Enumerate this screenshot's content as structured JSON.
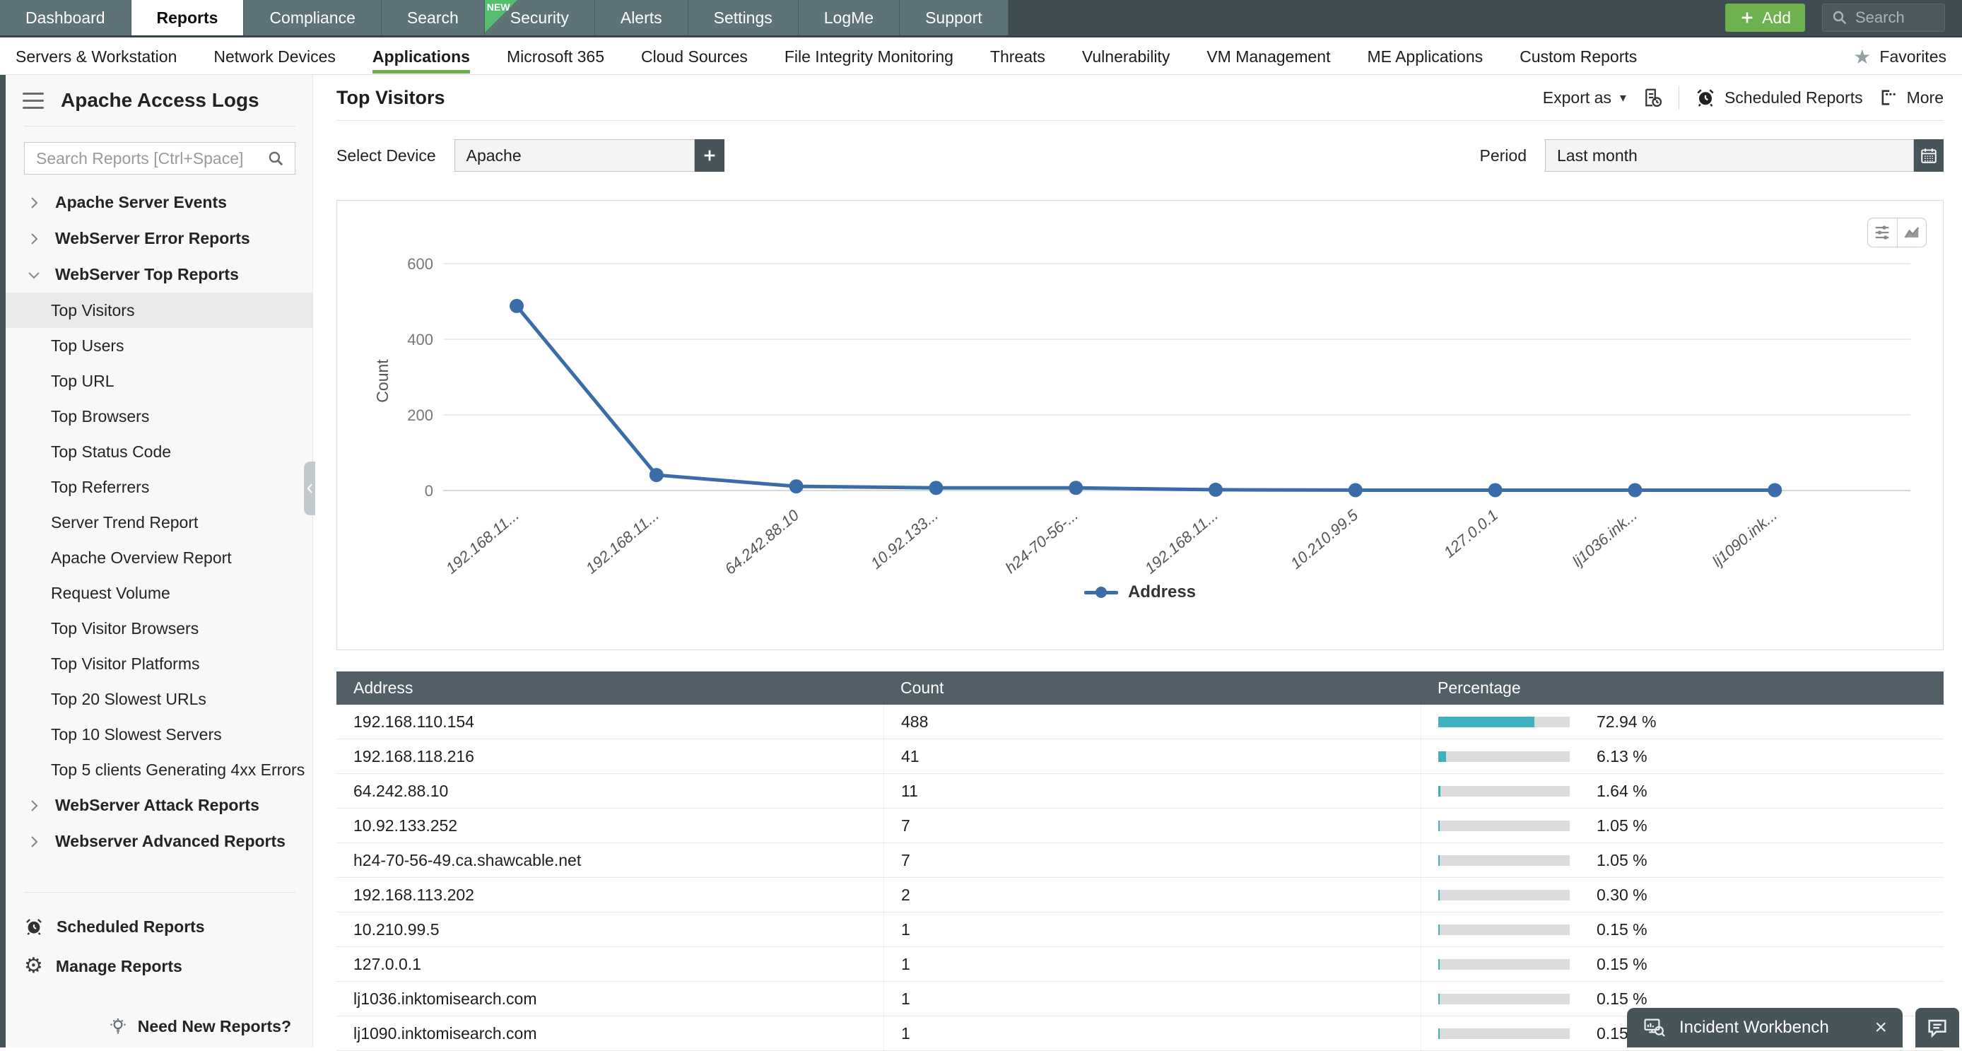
{
  "topnav": {
    "tabs": [
      {
        "label": "Dashboard",
        "active": false,
        "badge": null
      },
      {
        "label": "Reports",
        "active": true,
        "badge": null
      },
      {
        "label": "Compliance",
        "active": false,
        "badge": null
      },
      {
        "label": "Search",
        "active": false,
        "badge": null
      },
      {
        "label": "Security",
        "active": false,
        "badge": "NEW"
      },
      {
        "label": "Alerts",
        "active": false,
        "badge": null
      },
      {
        "label": "Settings",
        "active": false,
        "badge": null
      },
      {
        "label": "LogMe",
        "active": false,
        "badge": null
      },
      {
        "label": "Support",
        "active": false,
        "badge": null
      }
    ],
    "add_label": "Add",
    "search_placeholder": "Search"
  },
  "subnav": {
    "items": [
      "Servers & Workstation",
      "Network Devices",
      "Applications",
      "Microsoft 365",
      "Cloud Sources",
      "File Integrity Monitoring",
      "Threats",
      "Vulnerability",
      "VM Management",
      "ME Applications",
      "Custom Reports"
    ],
    "active_item": "Applications",
    "favorites_label": "Favorites"
  },
  "sidebar": {
    "title": "Apache Access Logs",
    "search_placeholder": "Search Reports [Ctrl+Space]",
    "groups": [
      {
        "label": "Apache Server Events",
        "expanded": false,
        "children": []
      },
      {
        "label": "WebServer Error Reports",
        "expanded": false,
        "children": []
      },
      {
        "label": "WebServer Top Reports",
        "expanded": true,
        "children": [
          "Top Visitors",
          "Top Users",
          "Top URL",
          "Top Browsers",
          "Top Status Code",
          "Top Referrers",
          "Server Trend Report",
          "Apache Overview Report",
          "Request Volume",
          "Top Visitor Browsers",
          "Top Visitor Platforms",
          "Top 20 Slowest URLs",
          "Top 10 Slowest Servers",
          "Top 5 clients Generating 4xx Errors"
        ]
      },
      {
        "label": "WebServer Attack Reports",
        "expanded": false,
        "children": []
      },
      {
        "label": "Webserver Advanced Reports",
        "expanded": false,
        "children": []
      }
    ],
    "selected_child": "Top Visitors",
    "footer": {
      "scheduled_reports": "Scheduled Reports",
      "manage_reports": "Manage Reports",
      "need_new_reports": "Need New Reports?"
    }
  },
  "report": {
    "title": "Top Visitors",
    "export_label": "Export as",
    "scheduled_label": "Scheduled Reports",
    "more_label": "More",
    "select_device_label": "Select Device",
    "device_value": "Apache",
    "period_label": "Period",
    "period_value": "Last month"
  },
  "chart_data": {
    "type": "line",
    "x": [
      "192.168.11...",
      "192.168.11...",
      "64.242.88.10",
      "10.92.133...",
      "h24-70-56-...",
      "192.168.11...",
      "10.210.99.5",
      "127.0.0.1",
      "lj1036.ink...",
      "lj1090.ink..."
    ],
    "values": [
      488,
      41,
      11,
      7,
      7,
      2,
      1,
      1,
      1,
      1
    ],
    "series_name": "Address",
    "ylabel": "Count",
    "yticks": [
      0,
      200,
      400,
      600
    ],
    "ylim": [
      0,
      600
    ],
    "grid": true,
    "legend_position": "bottom",
    "line_color": "#3a6ca8"
  },
  "table": {
    "columns": [
      "Address",
      "Count",
      "Percentage"
    ],
    "rows": [
      {
        "address": "192.168.110.154",
        "count": "488",
        "percentage": "72.94 %",
        "pct": 72.94
      },
      {
        "address": "192.168.118.216",
        "count": "41",
        "percentage": "6.13 %",
        "pct": 6.13
      },
      {
        "address": "64.242.88.10",
        "count": "11",
        "percentage": "1.64 %",
        "pct": 1.64
      },
      {
        "address": "10.92.133.252",
        "count": "7",
        "percentage": "1.05 %",
        "pct": 1.05
      },
      {
        "address": "h24-70-56-49.ca.shawcable.net",
        "count": "7",
        "percentage": "1.05 %",
        "pct": 1.05
      },
      {
        "address": "192.168.113.202",
        "count": "2",
        "percentage": "0.30 %",
        "pct": 0.3
      },
      {
        "address": "10.210.99.5",
        "count": "1",
        "percentage": "0.15 %",
        "pct": 0.15
      },
      {
        "address": "127.0.0.1",
        "count": "1",
        "percentage": "0.15 %",
        "pct": 0.15
      },
      {
        "address": "lj1036.inktomisearch.com",
        "count": "1",
        "percentage": "0.15 %",
        "pct": 0.15
      },
      {
        "address": "lj1090.inktomisearch.com",
        "count": "1",
        "percentage": "0.15 %",
        "pct": 0.15
      }
    ]
  },
  "workbench": {
    "label": "Incident Workbench"
  },
  "colors": {
    "accent_green": "#6cb14e",
    "nav_bg": "#3f4c51",
    "tab_bg": "#5d7377",
    "table_header_bg": "#525f66",
    "bar_fill": "#3fb0bf",
    "line": "#3a6ca8",
    "dark_button": "#47545a"
  }
}
